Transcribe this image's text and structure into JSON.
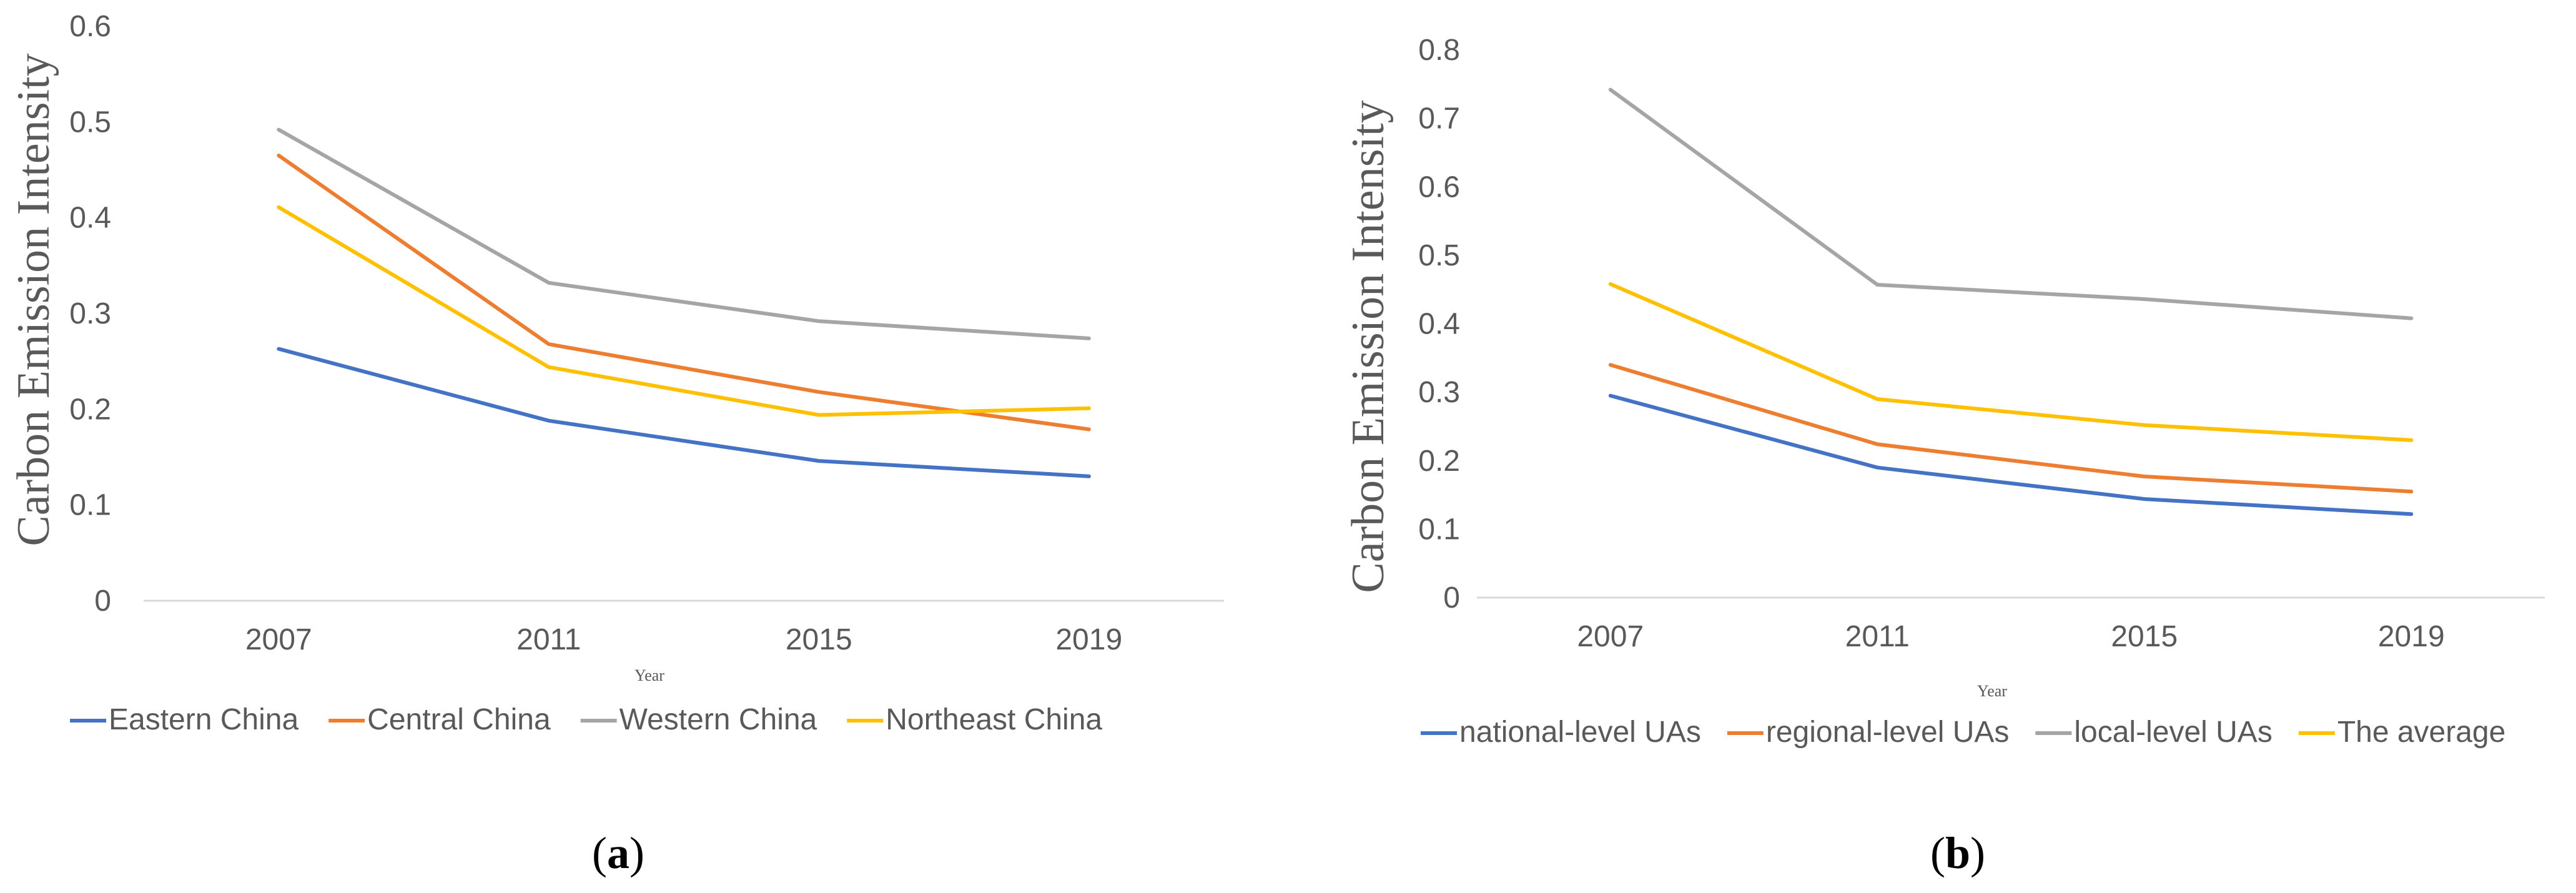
{
  "colors": {
    "blue": "#4472C4",
    "orange": "#ED7D31",
    "gray": "#A5A5A5",
    "yellow": "#FFC000",
    "axis": "#D9D9D9",
    "text": "#595959"
  },
  "chart_data": [
    {
      "type": "line",
      "panel_label": "a",
      "ylabel": "Carbon Emission Intensity",
      "xlabel": "Year",
      "categories": [
        "2007",
        "2011",
        "2015",
        "2019"
      ],
      "ylim": [
        0,
        0.6
      ],
      "yticks": [
        "0",
        "0.1",
        "0.2",
        "0.3",
        "0.4",
        "0.5",
        "0.6"
      ],
      "grid": false,
      "legend_position": "bottom",
      "series": [
        {
          "name": "Eastern China",
          "color": "#4472C4",
          "values": [
            0.263,
            0.188,
            0.146,
            0.13
          ]
        },
        {
          "name": "Central China",
          "color": "#ED7D31",
          "values": [
            0.465,
            0.268,
            0.218,
            0.179
          ]
        },
        {
          "name": "Western China",
          "color": "#A5A5A5",
          "values": [
            0.492,
            0.332,
            0.292,
            0.274
          ]
        },
        {
          "name": "Northeast China",
          "color": "#FFC000",
          "values": [
            0.411,
            0.244,
            0.194,
            0.201
          ]
        }
      ]
    },
    {
      "type": "line",
      "panel_label": "b",
      "ylabel": "Carbon Emission Intensity",
      "xlabel": "Year",
      "categories": [
        "2007",
        "2011",
        "2015",
        "2019"
      ],
      "ylim": [
        0,
        0.8
      ],
      "yticks": [
        "0",
        "0.1",
        "0.2",
        "0.3",
        "0.4",
        "0.5",
        "0.6",
        "0.7",
        "0.8"
      ],
      "grid": false,
      "legend_position": "bottom",
      "series": [
        {
          "name": "national-level UAs",
          "color": "#4472C4",
          "values": [
            0.295,
            0.19,
            0.144,
            0.122
          ]
        },
        {
          "name": "regional-level UAs",
          "color": "#ED7D31",
          "values": [
            0.34,
            0.224,
            0.177,
            0.155
          ]
        },
        {
          "name": "local-level UAs",
          "color": "#A5A5A5",
          "values": [
            0.742,
            0.457,
            0.436,
            0.408
          ]
        },
        {
          "name": "The average",
          "color": "#FFC000",
          "values": [
            0.458,
            0.29,
            0.252,
            0.23
          ]
        }
      ]
    }
  ]
}
